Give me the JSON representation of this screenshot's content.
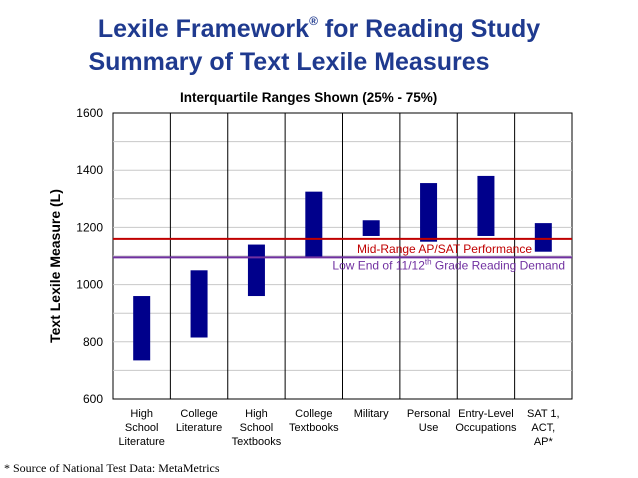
{
  "title_part1": "Lexile Framework",
  "title_reg": "®",
  "title_part2": " for Reading Study",
  "title_line2": "Summary of Text Lexile Measures",
  "footnote": "* Source of National Test Data: MetaMetrics",
  "colors": {
    "title": "#1f3a8f",
    "bar": "#00008b",
    "red_line": "#c00000",
    "purple_line": "#7030a0"
  },
  "chart_data": {
    "type": "bar",
    "subtitle": "Interquartile Ranges Shown (25% - 75%)",
    "ylabel": "Text Lexile Measure (L)",
    "ylim": [
      600,
      1600
    ],
    "yticks": [
      600,
      800,
      1000,
      1200,
      1400,
      1600
    ],
    "grid": true,
    "categories": [
      [
        "High",
        "School",
        "Literature"
      ],
      [
        "College",
        "Literature"
      ],
      [
        "High",
        "School",
        "Textbooks"
      ],
      [
        "College",
        "Textbooks"
      ],
      [
        "Military"
      ],
      [
        "Personal",
        "Use"
      ],
      [
        "Entry-Level",
        "Occupations"
      ],
      [
        "SAT 1,",
        "ACT,",
        "AP*"
      ]
    ],
    "series": [
      {
        "name": "Interquartile range",
        "low": [
          735,
          815,
          960,
          1095,
          1170,
          1150,
          1170,
          1115
        ],
        "high": [
          960,
          1050,
          1140,
          1325,
          1225,
          1355,
          1380,
          1215
        ]
      }
    ],
    "reference_lines": [
      {
        "name": "Mid-Range AP/SAT Performance",
        "value": 1160,
        "color": "#c00000"
      },
      {
        "name": "Low End of 11/12",
        "superscript": "th",
        "suffix": "  Grade Reading Demand",
        "value": 1095,
        "color": "#7030a0"
      }
    ]
  }
}
